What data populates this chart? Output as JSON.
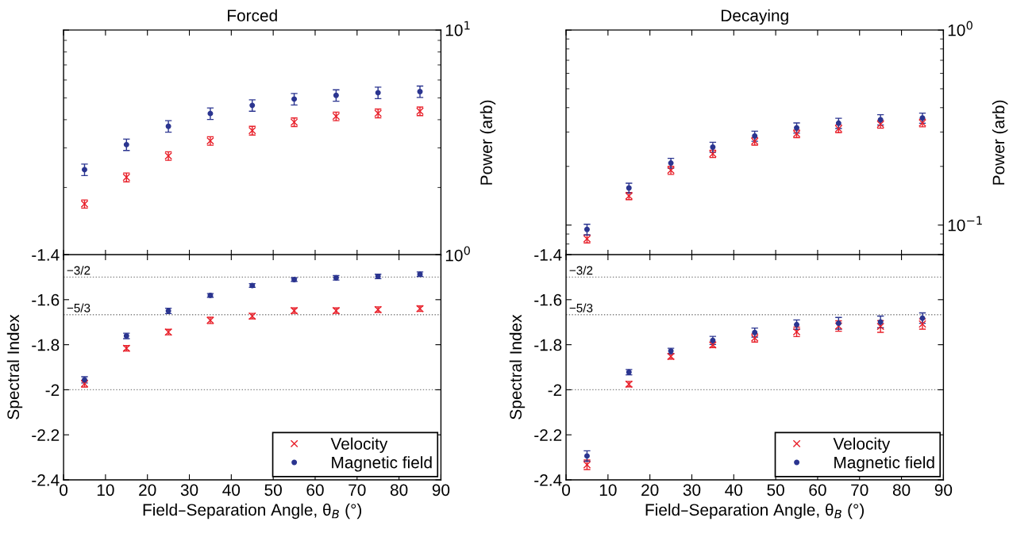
{
  "chart_data": [
    {
      "type": "scatter",
      "title": "Forced",
      "ylabel": "Power (arb)",
      "log": true,
      "tick_labels": "y",
      "x": [
        5,
        15,
        25,
        35,
        45,
        55,
        65,
        75,
        85
      ],
      "xlim": [
        0,
        90
      ],
      "xticks": [
        0,
        10,
        20,
        30,
        40,
        50,
        60,
        70,
        80,
        90
      ],
      "ylim": [
        1,
        10
      ],
      "yticks": [
        {
          "value": 1,
          "label": "10$^{0}$"
        },
        {
          "value": 10,
          "label": "10$^{1}$"
        }
      ],
      "series": [
        {
          "color": "#e8202a",
          "marker": "cross",
          "values": [
            1.69,
            2.22,
            2.76,
            3.22,
            3.58,
            3.9,
            4.14,
            4.27,
            4.36
          ],
          "errors": [
            0.07,
            0.1,
            0.12,
            0.14,
            0.16,
            0.17,
            0.18,
            0.19,
            0.19
          ]
        },
        {
          "color": "#2b3590",
          "marker": "circle",
          "values": [
            2.4,
            3.1,
            3.74,
            4.26,
            4.63,
            4.94,
            5.13,
            5.27,
            5.33
          ],
          "errors": [
            0.14,
            0.18,
            0.22,
            0.25,
            0.27,
            0.29,
            0.3,
            0.31,
            0.31
          ]
        }
      ]
    },
    {
      "type": "scatter",
      "title": "Decaying",
      "ylabel": "Power (arb)",
      "log": true,
      "tick_labels": "y",
      "x": [
        5,
        15,
        25,
        35,
        45,
        55,
        65,
        75,
        85
      ],
      "xlim": [
        0,
        90
      ],
      "xticks": [
        0,
        10,
        20,
        30,
        40,
        50,
        60,
        70,
        80,
        90
      ],
      "ylim": [
        0.07,
        1
      ],
      "yticks": [
        {
          "value": 0.1,
          "label": "10$^{−1}$"
        },
        {
          "value": 1,
          "label": "10$^{0}$"
        }
      ],
      "series": [
        {
          "color": "#e8202a",
          "marker": "cross",
          "values": [
            0.085,
            0.141,
            0.191,
            0.232,
            0.269,
            0.294,
            0.312,
            0.329,
            0.334
          ],
          "errors": [
            0.004,
            0.006,
            0.009,
            0.01,
            0.012,
            0.013,
            0.014,
            0.015,
            0.015
          ]
        },
        {
          "color": "#2b3590",
          "marker": "circle",
          "values": [
            0.095,
            0.155,
            0.208,
            0.251,
            0.286,
            0.315,
            0.333,
            0.347,
            0.354
          ],
          "errors": [
            0.006,
            0.009,
            0.012,
            0.015,
            0.017,
            0.019,
            0.02,
            0.021,
            0.021
          ]
        }
      ]
    },
    {
      "type": "scatter",
      "xlabel": "Field–Separation Angle, θ$_{B}$ (°)",
      "ylabel": "Spectral Index",
      "legend": "bottom right",
      "x": [
        5,
        15,
        25,
        35,
        45,
        55,
        65,
        75,
        85
      ],
      "xlim": [
        0,
        90
      ],
      "xticks": [
        0,
        10,
        20,
        30,
        40,
        50,
        60,
        70,
        80,
        90
      ],
      "ylim": [
        -2.4,
        -1.4
      ],
      "yticks": [
        -2.4,
        -2.2,
        -2,
        -1.8,
        -1.6,
        -1.4
      ],
      "ref_lines": [
        {
          "axis": "y",
          "value": -1.5,
          "label": "−3/2",
          "color": "#808080",
          "line_style": "dotted"
        },
        {
          "axis": "y",
          "value": -1.6667,
          "label": "−5/3",
          "color": "#808080",
          "line_style": "dotted"
        },
        {
          "axis": "y",
          "value": -2,
          "color": "#808080",
          "line_style": "dotted"
        }
      ],
      "series": [
        {
          "name": "Velocity",
          "color": "#e8202a",
          "marker": "cross",
          "values": [
            -1.973,
            -1.816,
            -1.744,
            -1.692,
            -1.673,
            -1.649,
            -1.649,
            -1.644,
            -1.64
          ],
          "errors": [
            0.015,
            0.012,
            0.012,
            0.014,
            0.012,
            0.012,
            0.012,
            0.012,
            0.012
          ]
        },
        {
          "name": "Magnetic field",
          "color": "#2b3590",
          "marker": "circle",
          "values": [
            -1.956,
            -1.761,
            -1.65,
            -1.581,
            -1.537,
            -1.511,
            -1.503,
            -1.497,
            -1.487
          ],
          "errors": [
            0.014,
            0.012,
            0.012,
            0.008,
            0.008,
            0.008,
            0.01,
            0.01,
            0.01
          ]
        }
      ]
    },
    {
      "type": "scatter",
      "xlabel": "Field–Separation Angle, θ$_{B}$ (°)",
      "ylabel": "Spectral Index",
      "legend": "bottom right",
      "x": [
        5,
        15,
        25,
        35,
        45,
        55,
        65,
        75,
        85
      ],
      "xlim": [
        0,
        90
      ],
      "xticks": [
        0,
        10,
        20,
        30,
        40,
        50,
        60,
        70,
        80,
        90
      ],
      "ylim": [
        -2.4,
        -1.4
      ],
      "yticks": [
        -2.4,
        -2.2,
        -2,
        -1.8,
        -1.6,
        -1.4
      ],
      "ref_lines": [
        {
          "axis": "y",
          "value": -1.5,
          "label": "−3/2",
          "color": "#808080",
          "line_style": "dotted"
        },
        {
          "axis": "y",
          "value": -1.6667,
          "label": "−5/3",
          "color": "#808080",
          "line_style": "dotted"
        },
        {
          "axis": "y",
          "value": -2,
          "color": "#808080",
          "line_style": "dotted"
        }
      ],
      "series": [
        {
          "name": "Velocity",
          "color": "#e8202a",
          "marker": "cross",
          "values": [
            -2.333,
            -1.975,
            -1.852,
            -1.801,
            -1.77,
            -1.743,
            -1.717,
            -1.719,
            -1.708
          ],
          "errors": [
            0.021,
            0.012,
            0.012,
            0.012,
            0.018,
            0.021,
            0.023,
            0.026,
            0.023
          ]
        },
        {
          "name": "Magnetic field",
          "color": "#2b3590",
          "marker": "circle",
          "values": [
            -2.294,
            -1.922,
            -1.828,
            -1.781,
            -1.746,
            -1.711,
            -1.705,
            -1.699,
            -1.682
          ],
          "errors": [
            0.023,
            0.012,
            0.012,
            0.018,
            0.02,
            0.021,
            0.026,
            0.026,
            0.023
          ]
        }
      ]
    }
  ]
}
